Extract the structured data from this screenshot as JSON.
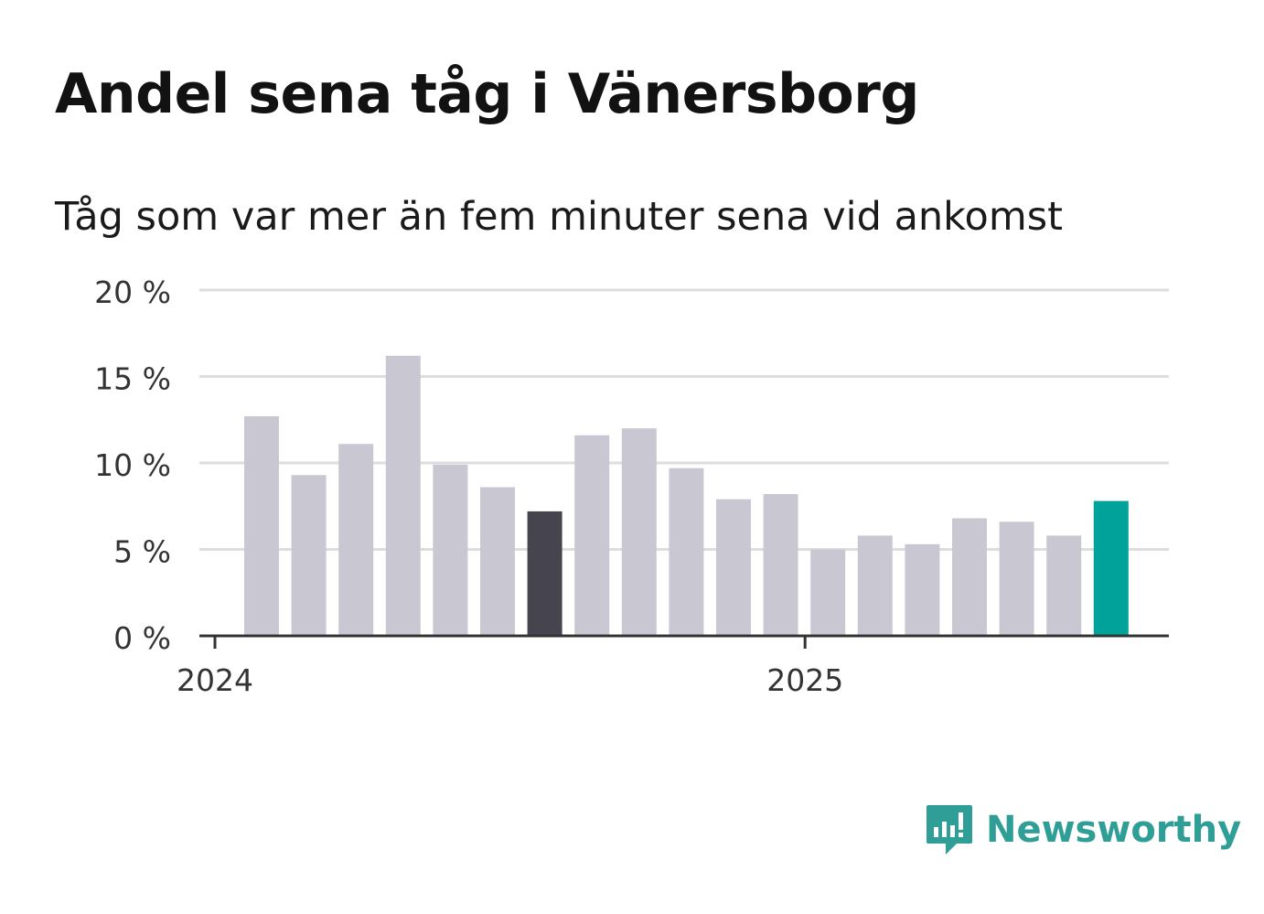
{
  "header": {
    "title": "Andel sena tåg i Vänersborg",
    "subtitle": "Tåg som var mer än fem minuter sena vid ankomst"
  },
  "brand": {
    "name": "Newsworthy",
    "icon": "newsworthy-logo-icon",
    "color": "#2f9e96"
  },
  "colors": {
    "bar_default": "#c9c8d2",
    "bar_highlight_dark": "#45444f",
    "bar_highlight_current": "#00a29a",
    "grid": "#dddddd",
    "axis": "#333333",
    "text": "#333333"
  },
  "chart_data": {
    "type": "bar",
    "categories": [
      "2024-01",
      "2024-02",
      "2024-03",
      "2024-04",
      "2024-05",
      "2024-06",
      "2024-07",
      "2024-08",
      "2024-09",
      "2024-10",
      "2024-11",
      "2024-12",
      "2025-01",
      "2025-02",
      "2025-03",
      "2025-04",
      "2025-05",
      "2025-06",
      "2025-07"
    ],
    "values": [
      12.7,
      9.3,
      11.1,
      16.2,
      9.9,
      8.6,
      7.2,
      11.6,
      12.0,
      9.7,
      7.9,
      8.2,
      5.0,
      5.8,
      5.3,
      6.8,
      6.6,
      5.8,
      7.8
    ],
    "highlight": {
      "2024-07": "dark",
      "2025-07": "current"
    },
    "ylim": [
      0,
      20
    ],
    "yticks": [
      0,
      5,
      10,
      15,
      20
    ],
    "ytick_labels": [
      "0 %",
      "5 %",
      "10 %",
      "15 %",
      "20 %"
    ],
    "xtick_labels": [
      {
        "label": "2024",
        "at": "2024-01"
      },
      {
        "label": "2025",
        "at": "2025-01"
      }
    ],
    "grid": true,
    "xlabel": "",
    "ylabel": ""
  }
}
